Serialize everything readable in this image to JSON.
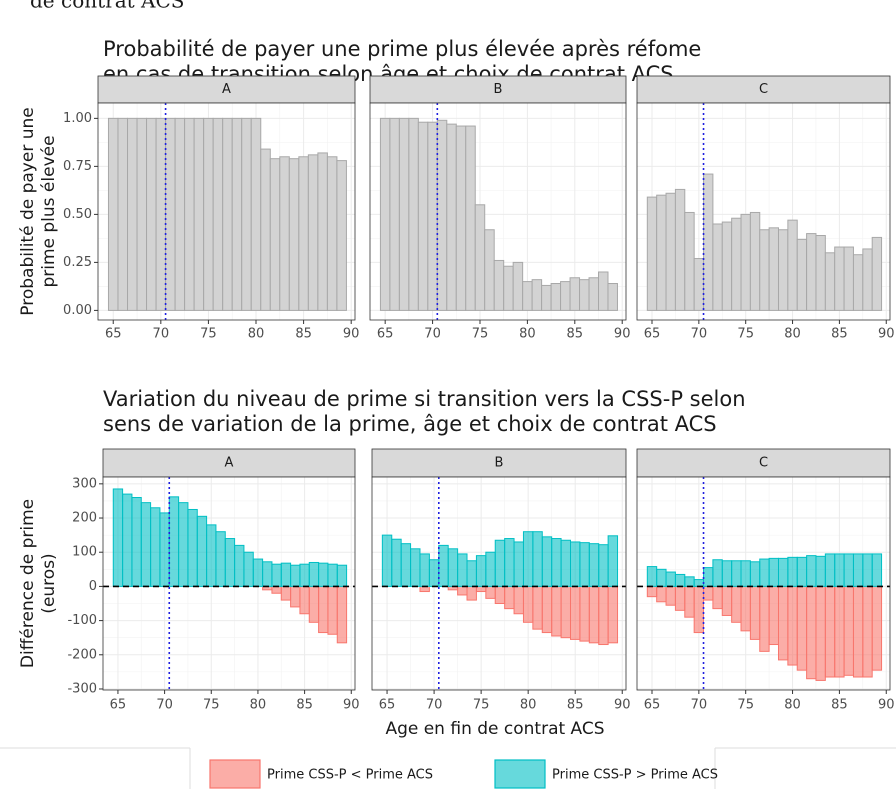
{
  "header_fragment": "de contrat ACS",
  "chart_data": [
    {
      "type": "bar",
      "title": [
        "Probabilité de payer une prime plus élevée après réfome",
        "en cas de transition selon âge et choix de contrat ACS"
      ],
      "ylabel": [
        "Probabilité de payer une",
        "prime plus élevée"
      ],
      "facets": [
        "A",
        "B",
        "C"
      ],
      "x": [
        65,
        66,
        67,
        68,
        69,
        70,
        71,
        72,
        73,
        74,
        75,
        76,
        77,
        78,
        79,
        80,
        81,
        82,
        83,
        84,
        85,
        86,
        87,
        88,
        89
      ],
      "values": [
        [
          1.0,
          1.0,
          1.0,
          1.0,
          1.0,
          1.0,
          1.0,
          1.0,
          1.0,
          1.0,
          1.0,
          1.0,
          1.0,
          1.0,
          1.0,
          1.0,
          0.84,
          0.79,
          0.8,
          0.79,
          0.8,
          0.81,
          0.82,
          0.8,
          0.78
        ],
        [
          1.0,
          1.0,
          1.0,
          1.0,
          0.98,
          0.98,
          0.99,
          0.97,
          0.96,
          0.96,
          0.55,
          0.42,
          0.26,
          0.23,
          0.25,
          0.15,
          0.16,
          0.13,
          0.14,
          0.15,
          0.17,
          0.16,
          0.17,
          0.2,
          0.14
        ],
        [
          0.59,
          0.6,
          0.61,
          0.63,
          0.51,
          0.27,
          0.71,
          0.45,
          0.46,
          0.48,
          0.5,
          0.51,
          0.42,
          0.43,
          0.42,
          0.47,
          0.37,
          0.4,
          0.39,
          0.3,
          0.33,
          0.33,
          0.29,
          0.32,
          0.38
        ]
      ],
      "color": "#d3d3d3",
      "xlim": [
        63.4,
        90.4
      ],
      "xticks": [
        65,
        70,
        75,
        80,
        85,
        90
      ],
      "ylim": [
        -0.05,
        1.08
      ],
      "yticks": [
        {
          "value": 0,
          "label": "0.00"
        },
        {
          "value": 0.25,
          "label": "0.25"
        },
        {
          "value": 0.5,
          "label": "0.50"
        },
        {
          "value": 0.75,
          "label": "0.75"
        },
        {
          "value": 1,
          "label": "1.00"
        }
      ],
      "vline": 70.5,
      "grid": true
    },
    {
      "type": "bar",
      "title": [
        "Variation du niveau de prime si transition vers la CSS-P selon",
        "sens de variation de la prime, âge et choix de contrat ACS"
      ],
      "ylabel": [
        "Différence de prime",
        "(euros)"
      ],
      "xlabel": "Age en fin de contrat ACS",
      "facets": [
        "A",
        "B",
        "C"
      ],
      "x": [
        65,
        66,
        67,
        68,
        69,
        70,
        71,
        72,
        73,
        74,
        75,
        76,
        77,
        78,
        79,
        80,
        81,
        82,
        83,
        84,
        85,
        86,
        87,
        88,
        89
      ],
      "series": [
        {
          "name": "Prime CSS-P < Prime ACS",
          "color": "#F8766D",
          "values": [
            [
              0,
              0,
              0,
              0,
              0,
              0,
              0,
              0,
              0,
              0,
              0,
              0,
              0,
              0,
              0,
              0,
              -10,
              -20,
              -40,
              -60,
              -80,
              -105,
              -135,
              -140,
              -165
            ],
            [
              0,
              0,
              0,
              0,
              -15,
              0,
              0,
              -10,
              -25,
              -40,
              -15,
              -35,
              -50,
              -65,
              -80,
              -105,
              -125,
              -135,
              -145,
              -150,
              -155,
              -160,
              -165,
              -170,
              -165
            ],
            [
              -30,
              -45,
              -55,
              -70,
              -90,
              -135,
              -40,
              -65,
              -85,
              -105,
              -130,
              -155,
              -190,
              -170,
              -215,
              -230,
              -245,
              -270,
              -275,
              -265,
              -265,
              -260,
              -265,
              -265,
              -245
            ]
          ]
        },
        {
          "name": "Prime CSS-P > Prime ACS",
          "color": "#00BFC4",
          "values": [
            [
              285,
              270,
              260,
              245,
              230,
              215,
              262,
              245,
              225,
              205,
              180,
              160,
              140,
              120,
              100,
              80,
              72,
              65,
              68,
              62,
              65,
              70,
              68,
              65,
              62
            ],
            [
              150,
              138,
              125,
              110,
              95,
              78,
              120,
              110,
              95,
              75,
              90,
              100,
              135,
              140,
              130,
              160,
              160,
              145,
              140,
              135,
              130,
              128,
              125,
              122,
              148
            ],
            [
              58,
              50,
              42,
              35,
              28,
              20,
              55,
              78,
              75,
              75,
              75,
              72,
              80,
              82,
              82,
              85,
              85,
              90,
              88,
              95,
              95,
              95,
              95,
              95,
              95
            ]
          ]
        }
      ],
      "xlim": [
        63.4,
        90.4
      ],
      "xticks": [
        65,
        70,
        75,
        80,
        85,
        90
      ],
      "ylim": [
        -303,
        320
      ],
      "yticks": [
        -300,
        -200,
        -100,
        0,
        100,
        200,
        300
      ],
      "hline": 0,
      "vline": 70.5,
      "grid": true
    }
  ]
}
